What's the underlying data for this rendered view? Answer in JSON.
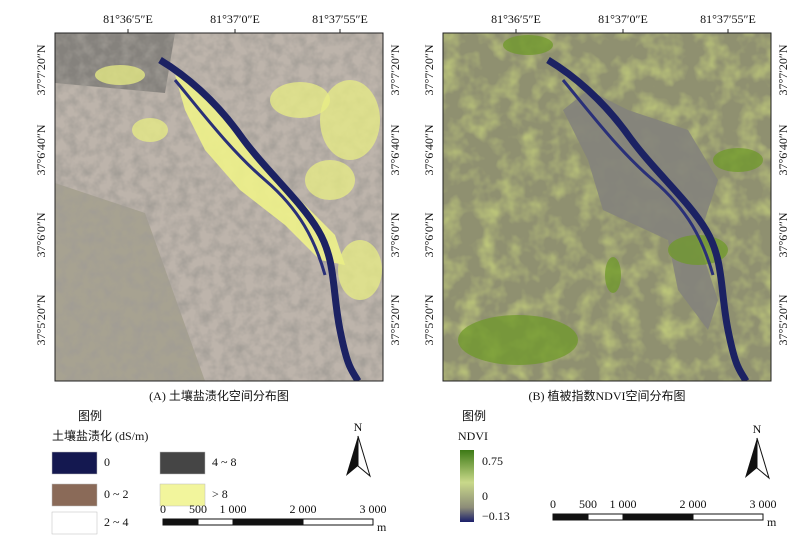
{
  "panels": [
    {
      "lon_labels": [
        "81°36′5″E",
        "81°37′0″E",
        "81°37′55″E"
      ],
      "lat_labels": [
        "37°7′20″N",
        "37°6′40″N",
        "37°6′0″N",
        "37°5′20″N"
      ],
      "caption": "(A) 土壤盐渍化空间分布图",
      "legend": {
        "title": "图例",
        "subtitle": "土壤盐渍化 (dS/m)",
        "items": [
          "0",
          "0 ~ 2",
          "2 ~ 4",
          "4 ~ 8",
          "> 8"
        ]
      },
      "scale_bar": {
        "labels": [
          "0",
          "500",
          "1 000",
          "2 000",
          "3 000"
        ],
        "unit": "m"
      },
      "north": "N"
    },
    {
      "lon_labels": [
        "81°36′5″E",
        "81°37′0″E",
        "81°37′55″E"
      ],
      "lat_labels": [
        "37°7′20″N",
        "37°6′40″N",
        "37°6′0″N",
        "37°5′20″N"
      ],
      "caption": "(B) 植被指数NDVI空间分布图",
      "legend": {
        "title": "图例",
        "subtitle": "NDVI",
        "items": [
          "0.75",
          "0",
          "−0.13"
        ]
      },
      "scale_bar": {
        "labels": [
          "0",
          "500",
          "1 000",
          "2 000",
          "3 000"
        ],
        "unit": "m"
      },
      "north": "N"
    }
  ]
}
